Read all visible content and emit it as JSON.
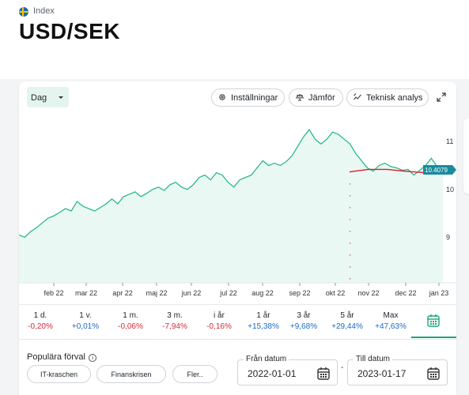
{
  "header": {
    "flag": "sweden-flag-icon",
    "kind": "Index",
    "title": "USD/SEK"
  },
  "toolbar": {
    "period": "Dag",
    "settings_label": "Inställningar",
    "compare_label": "Jämför",
    "technical_label": "Teknisk analys"
  },
  "chart_data": {
    "type": "area",
    "x_ticks": [
      "feb 22",
      "mar 22",
      "apr 22",
      "maj 22",
      "jun 22",
      "jul 22",
      "aug 22",
      "sep 22",
      "okt 22",
      "nov 22",
      "dec 22",
      "jan 23"
    ],
    "y_ticks": [
      "9",
      "10",
      "11"
    ],
    "ylim": [
      8.05,
      11.35
    ],
    "last_value_label": "10.4079",
    "series": [
      {
        "values": [
          9.05,
          9.0,
          9.12,
          9.2,
          9.3,
          9.4,
          9.45,
          9.52,
          9.6,
          9.55,
          9.75,
          9.65,
          9.6,
          9.55,
          9.62,
          9.7,
          9.8,
          9.7,
          9.85,
          9.9,
          9.95,
          9.85,
          9.92,
          10.0,
          10.05,
          9.98,
          10.1,
          10.15,
          10.05,
          10.0,
          10.1,
          10.25,
          10.3,
          10.2,
          10.35,
          10.3,
          10.15,
          10.05,
          10.2,
          10.25,
          10.3,
          10.45,
          10.6,
          10.5,
          10.55,
          10.5,
          10.58,
          10.7,
          10.9,
          11.1,
          11.25,
          11.05,
          10.95,
          11.05,
          11.2,
          11.15,
          11.05,
          10.95,
          10.75,
          10.6,
          10.45,
          10.38,
          10.5,
          10.55,
          10.48,
          10.45,
          10.4,
          10.42,
          10.3,
          10.4,
          10.5,
          10.65,
          10.48,
          10.41
        ]
      },
      {
        "name": "",
        "values": [
          10.37,
          10.42,
          10.42,
          10.38,
          10.35,
          10.37
        ]
      }
    ]
  },
  "stats": [
    {
      "period": "1 d.",
      "change": "-0,20%",
      "sign": "neg"
    },
    {
      "period": "1 v.",
      "change": "+0,01%",
      "sign": "pos"
    },
    {
      "period": "1 m.",
      "change": "-0,06%",
      "sign": "neg"
    },
    {
      "period": "3 m.",
      "change": "-7,94%",
      "sign": "neg"
    },
    {
      "period": "i år",
      "change": "-0,16%",
      "sign": "neg"
    },
    {
      "period": "1 år",
      "change": "+15,38%",
      "sign": "pos"
    },
    {
      "period": "3 år",
      "change": "+9,68%",
      "sign": "pos"
    },
    {
      "period": "5 år",
      "change": "+29,44%",
      "sign": "pos"
    },
    {
      "period": "Max",
      "change": "+47,63%",
      "sign": "pos"
    }
  ],
  "popular": {
    "label": "Populära förval",
    "chips": [
      "IT-kraschen",
      "Finanskrisen",
      "Fler.."
    ]
  },
  "dates": {
    "from_label": "Från datum",
    "from_value": "2022-01-01",
    "to_label": "Till datum",
    "to_value": "2023-01-17"
  },
  "colors": {
    "line": "#1db584",
    "area": "#e9f8f2",
    "compare_line": "#e01b2b",
    "badge": "#188a9c",
    "negative": "#d42a3a",
    "positive": "#1b6ac9"
  }
}
